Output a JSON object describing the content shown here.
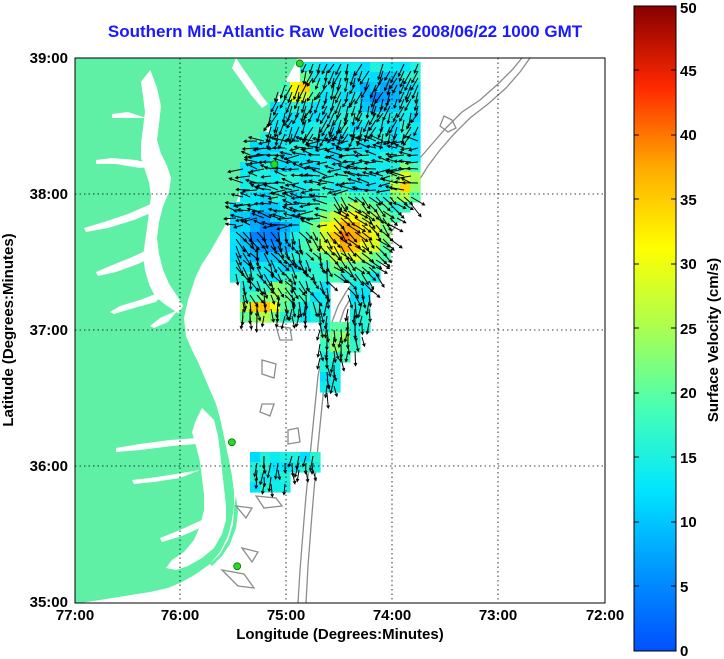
{
  "title": "Southern Mid-Atlantic Raw Velocities 2008/06/22 1000 GMT",
  "map": {
    "x_label": "Longitude (Degrees:Minutes)",
    "y_label": "Latitude (Degrees:Minutes)",
    "lon_ticks": [
      "77:00",
      "76:00",
      "75:00",
      "74:00",
      "73:00",
      "72:00"
    ],
    "lat_ticks": [
      "39:00",
      "38:00",
      "37:00",
      "36:00",
      "35:00"
    ],
    "lon_range": [
      -77,
      -72
    ],
    "lat_range": [
      35,
      39
    ],
    "land_color": "#5ff0a6",
    "bathymetry_color": "#8c8c8c",
    "station_color": "#22dd22"
  },
  "colorbar": {
    "label": "Surface Velocity (cm/s)",
    "ticks": [
      "0",
      "5",
      "10",
      "15",
      "20",
      "25",
      "30",
      "35",
      "40",
      "45",
      "50"
    ],
    "range": [
      0,
      50
    ]
  },
  "stations": [
    {
      "lon": -74.88,
      "lat": 38.96
    },
    {
      "lon": -75.12,
      "lat": 38.22
    },
    {
      "lon": -75.52,
      "lat": 36.18
    },
    {
      "lon": -75.47,
      "lat": 35.27
    }
  ]
}
